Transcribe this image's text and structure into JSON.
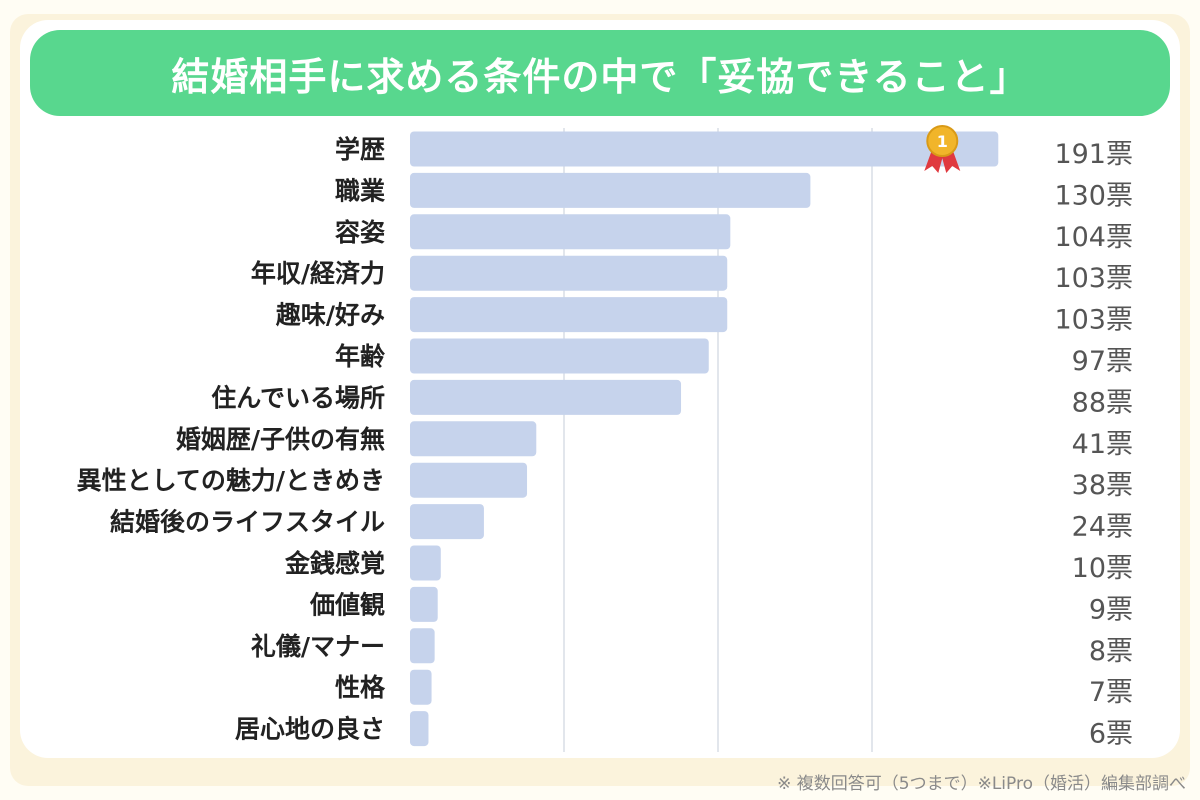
{
  "title": "結婚相手に求める条件の中で「妥協できること」",
  "footnote": "※ 複数回答可（5つまで）※LiPro（婚活）編集部調べ",
  "colors": {
    "banner": "#58d78e",
    "bar": "#c6d3ec",
    "grid": "#d8dde6",
    "label": "#222222",
    "value": "#555555",
    "medal_gold": "#f1b52a",
    "ribbon": "#e0393f"
  },
  "chart_data": {
    "type": "bar",
    "orientation": "horizontal",
    "categories": [
      "学歴",
      "職業",
      "容姿",
      "年収/経済力",
      "趣味/好み",
      "年齢",
      "住んでいる場所",
      "婚姻歴/子供の有無",
      "異性としての魅力/ときめき",
      "結婚後のライフスタイル",
      "金銭感覚",
      "価値観",
      "礼儀/マナー",
      "性格",
      "居心地の良さ"
    ],
    "values": [
      191,
      130,
      104,
      103,
      103,
      97,
      88,
      41,
      38,
      24,
      10,
      9,
      8,
      7,
      6
    ],
    "value_labels": [
      "191票",
      "130票",
      "104票",
      "103票",
      "103票",
      "97票",
      "88票",
      "41票",
      "38票",
      "24票",
      "10票",
      "9票",
      "8票",
      "7票",
      "6票"
    ],
    "xlim": [
      0,
      200
    ],
    "grid": true,
    "top_badge": {
      "category": "学歴",
      "rank": "1"
    }
  }
}
